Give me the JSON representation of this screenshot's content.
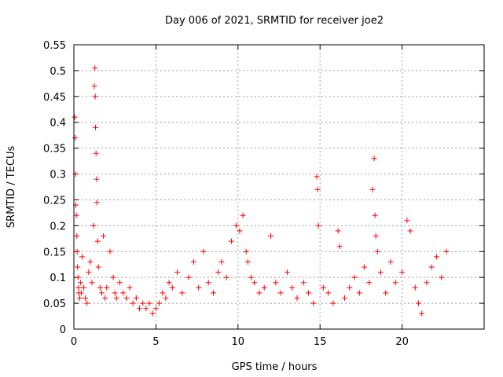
{
  "chart_data": {
    "type": "scatter",
    "title": "Day 006 of 2021, SRMTID for receiver joe2",
    "xlabel": "GPS time / hours",
    "ylabel": "SRMTID / TECUs",
    "xlim": [
      0,
      25
    ],
    "ylim": [
      0,
      0.55
    ],
    "x_ticks": [
      0,
      5,
      10,
      15,
      20
    ],
    "x_tick_labels": [
      "0",
      "5",
      "10",
      "15",
      "20"
    ],
    "y_ticks": [
      0,
      0.05,
      0.1,
      0.15,
      0.2,
      0.25,
      0.3,
      0.35,
      0.4,
      0.45,
      0.5,
      0.55
    ],
    "y_tick_labels": [
      "0",
      "0.05",
      "0.1",
      "0.15",
      "0.2",
      "0.25",
      "0.3",
      "0.35",
      "0.4",
      "0.45",
      "0.5",
      "0.55"
    ],
    "grid": true,
    "marker": "+",
    "colors": {
      "series": "#ff0000",
      "grid": "#a0a0a0",
      "axis": "#000000"
    },
    "series": [
      {
        "name": "SRMTID",
        "x": [
          0.05,
          0.08,
          0.1,
          0.12,
          0.15,
          0.18,
          0.2,
          0.22,
          0.25,
          0.28,
          0.3,
          0.35,
          0.4,
          0.45,
          0.5,
          0.6,
          0.7,
          0.8,
          0.9,
          1.0,
          1.1,
          1.2,
          1.25,
          1.28,
          1.3,
          1.32,
          1.35,
          1.38,
          1.4,
          1.45,
          1.5,
          1.6,
          1.7,
          1.8,
          1.9,
          2.0,
          2.2,
          2.4,
          2.5,
          2.6,
          2.8,
          3.0,
          3.2,
          3.4,
          3.6,
          3.8,
          4.0,
          4.2,
          4.4,
          4.6,
          4.8,
          5.0,
          5.2,
          5.4,
          5.6,
          5.8,
          6.0,
          6.3,
          6.6,
          7.0,
          7.3,
          7.6,
          7.9,
          8.2,
          8.5,
          8.8,
          9.0,
          9.3,
          9.6,
          9.9,
          10.1,
          10.3,
          10.5,
          10.6,
          10.8,
          11.0,
          11.3,
          11.6,
          12.0,
          12.3,
          12.6,
          13.0,
          13.3,
          13.6,
          14.0,
          14.3,
          14.6,
          14.8,
          14.85,
          14.9,
          15.2,
          15.5,
          15.8,
          16.1,
          16.2,
          16.5,
          16.8,
          17.1,
          17.4,
          17.7,
          18.0,
          18.2,
          18.3,
          18.35,
          18.4,
          18.5,
          18.7,
          19.0,
          19.3,
          19.6,
          20.0,
          20.3,
          20.5,
          20.8,
          21.0,
          21.2,
          21.5,
          21.8,
          22.1,
          22.4,
          22.7
        ],
        "y": [
          0.41,
          0.37,
          0.3,
          0.24,
          0.22,
          0.18,
          0.15,
          0.12,
          0.1,
          0.08,
          0.07,
          0.06,
          0.09,
          0.07,
          0.14,
          0.08,
          0.06,
          0.05,
          0.11,
          0.13,
          0.09,
          0.2,
          0.47,
          0.505,
          0.45,
          0.39,
          0.34,
          0.29,
          0.245,
          0.17,
          0.12,
          0.08,
          0.07,
          0.18,
          0.06,
          0.08,
          0.15,
          0.1,
          0.07,
          0.06,
          0.09,
          0.07,
          0.06,
          0.08,
          0.05,
          0.06,
          0.04,
          0.05,
          0.04,
          0.05,
          0.03,
          0.04,
          0.05,
          0.07,
          0.06,
          0.09,
          0.08,
          0.11,
          0.07,
          0.1,
          0.13,
          0.08,
          0.15,
          0.09,
          0.07,
          0.11,
          0.13,
          0.1,
          0.17,
          0.2,
          0.19,
          0.22,
          0.15,
          0.13,
          0.1,
          0.09,
          0.07,
          0.08,
          0.18,
          0.09,
          0.07,
          0.11,
          0.08,
          0.06,
          0.09,
          0.07,
          0.05,
          0.295,
          0.27,
          0.2,
          0.08,
          0.07,
          0.05,
          0.19,
          0.16,
          0.06,
          0.08,
          0.1,
          0.07,
          0.12,
          0.09,
          0.27,
          0.33,
          0.22,
          0.18,
          0.15,
          0.11,
          0.07,
          0.13,
          0.09,
          0.11,
          0.21,
          0.19,
          0.08,
          0.05,
          0.03,
          0.09,
          0.12,
          0.14,
          0.1,
          0.15
        ]
      }
    ]
  }
}
